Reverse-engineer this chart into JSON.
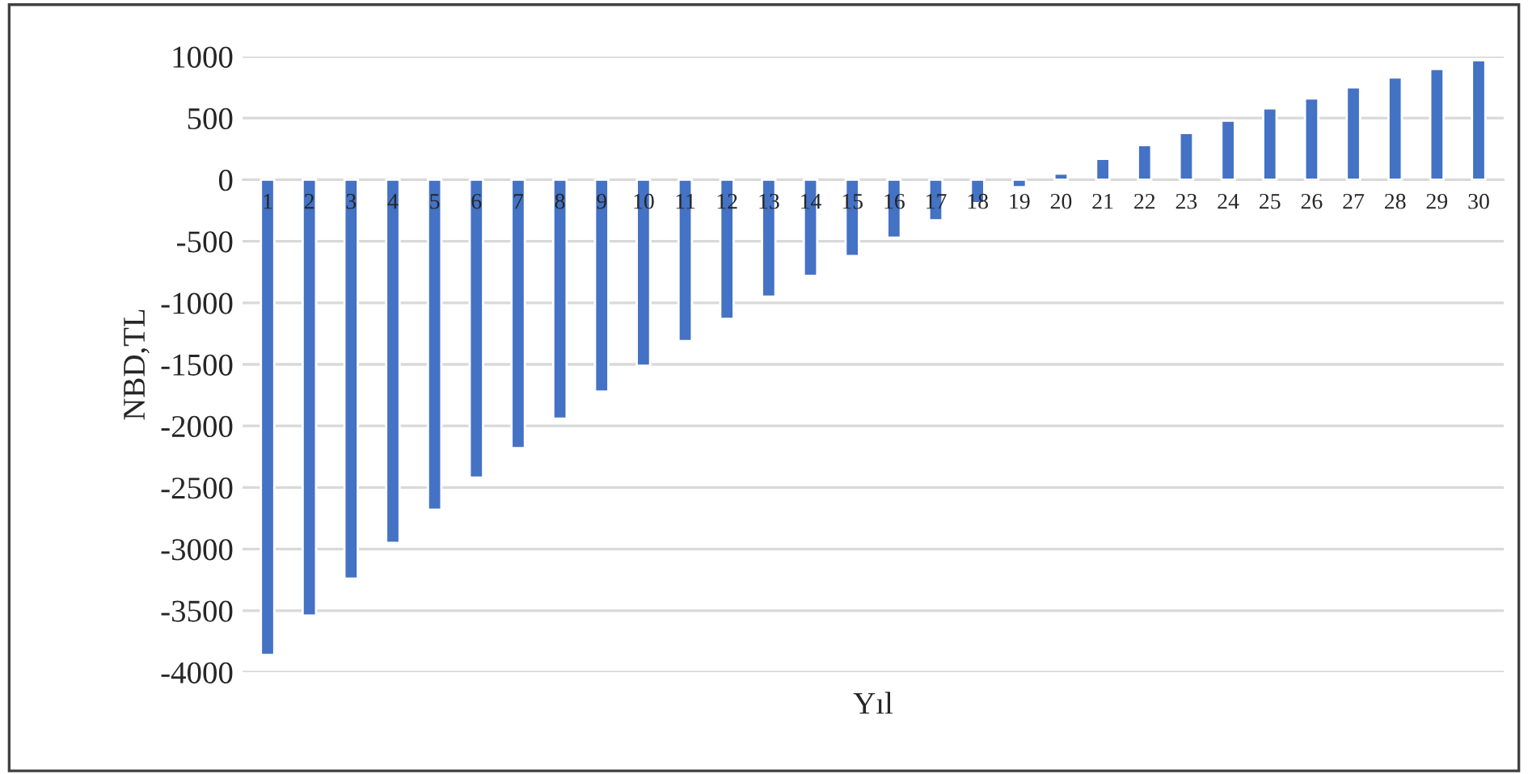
{
  "chart_data": {
    "type": "bar",
    "xlabel": "Yıl",
    "ylabel": "NBD,TL",
    "categories": [
      "1",
      "2",
      "3",
      "4",
      "5",
      "6",
      "7",
      "8",
      "9",
      "10",
      "11",
      "12",
      "13",
      "14",
      "15",
      "16",
      "17",
      "18",
      "19",
      "20",
      "21",
      "22",
      "23",
      "24",
      "25",
      "26",
      "27",
      "28",
      "29",
      "30"
    ],
    "values": [
      -3860,
      -3540,
      -3240,
      -2950,
      -2680,
      -2420,
      -2180,
      -1940,
      -1720,
      -1510,
      -1310,
      -1130,
      -950,
      -780,
      -620,
      -470,
      -330,
      -190,
      -60,
      50,
      170,
      280,
      380,
      480,
      580,
      660,
      750,
      830,
      900,
      970
    ],
    "color": "#4472c4",
    "ylim": [
      -4000,
      1000
    ],
    "yticks": [
      -4000,
      -3500,
      -3000,
      -2500,
      -2000,
      -1500,
      -1000,
      -500,
      0,
      500,
      1000
    ],
    "grid": "y",
    "legend": false
  }
}
